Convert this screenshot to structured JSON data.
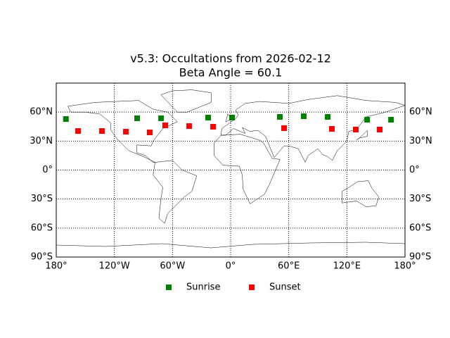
{
  "chart_data": {
    "type": "scatter",
    "title": "v5.3: Occultations from 2026-02-12",
    "subtitle": "Beta Angle = 60.1",
    "xlim": [
      -180,
      180
    ],
    "ylim": [
      -90,
      90
    ],
    "xticks": [
      {
        "value": -180,
        "label": "180°"
      },
      {
        "value": -120,
        "label": "120°W"
      },
      {
        "value": -60,
        "label": "60°W"
      },
      {
        "value": 0,
        "label": "0°"
      },
      {
        "value": 60,
        "label": "60°E"
      },
      {
        "value": 120,
        "label": "120°E"
      },
      {
        "value": 180,
        "label": "180°"
      }
    ],
    "yticks": [
      {
        "value": -90,
        "label": "90°S"
      },
      {
        "value": -60,
        "label": "60°S"
      },
      {
        "value": -30,
        "label": "30°S"
      },
      {
        "value": 0,
        "label": "0°"
      },
      {
        "value": 30,
        "label": "30°N"
      },
      {
        "value": 60,
        "label": "60°N"
      }
    ],
    "grid": true,
    "legend": "bottom",
    "series": [
      {
        "name": "Sunrise",
        "color": "#008000",
        "x": [
          -170,
          -96.5,
          -71.8,
          -23.2,
          1.5,
          50.8,
          75.5,
          100.2,
          140.9,
          165.6
        ],
        "values": [
          52.8,
          53.6,
          53.6,
          54.3,
          54.3,
          55.0,
          55.7,
          55.0,
          52.1,
          52.1
        ]
      },
      {
        "name": "Sunset",
        "color": "#ff0000",
        "x": [
          -157.5,
          -132.8,
          -108.1,
          -83.5,
          -67.5,
          -42.8,
          -18.1,
          55.2,
          104.5,
          129.2,
          153.9
        ],
        "values": [
          40.4,
          40.4,
          39.7,
          39.0,
          46.3,
          45.5,
          44.8,
          43.4,
          42.6,
          41.9,
          41.9
        ]
      }
    ]
  }
}
